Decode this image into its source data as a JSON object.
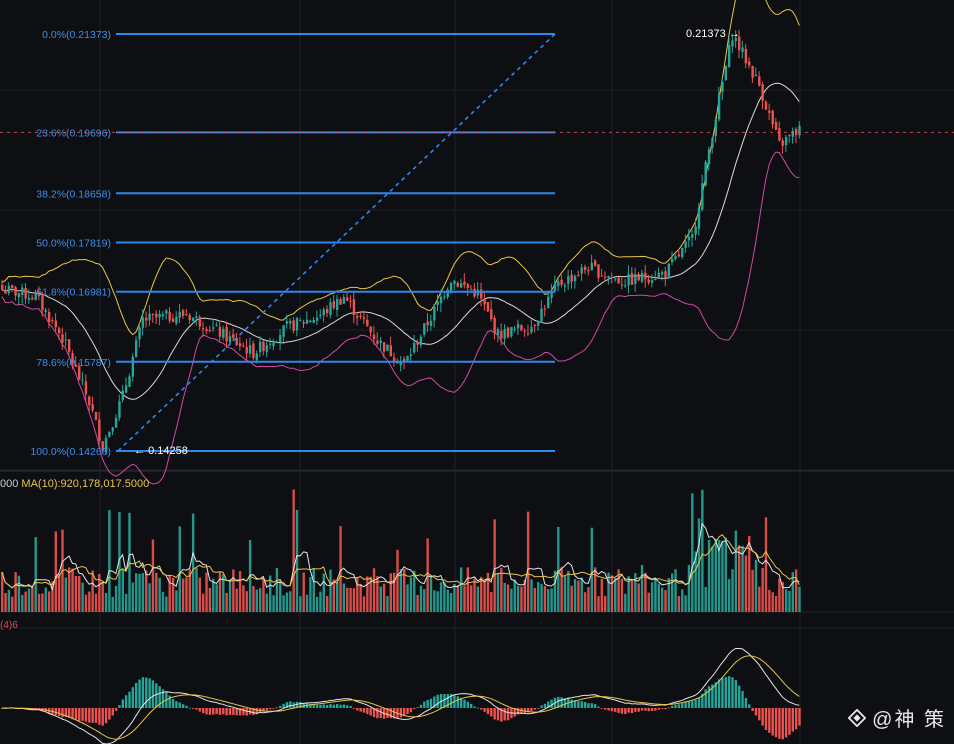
{
  "chart_data": {
    "type": "candlestick",
    "fibonacci": {
      "levels": [
        {
          "label": "0.0%(0.21373)",
          "price": 0.21373
        },
        {
          "label": "23.6%(0.19696)",
          "price": 0.19696
        },
        {
          "label": "38.2%(0.18658)",
          "price": 0.18658
        },
        {
          "label": "50.0%(0.17819)",
          "price": 0.17819
        },
        {
          "label": "61.8%(0.16981)",
          "price": 0.16981
        },
        {
          "label": "78.6%(0.15787)",
          "price": 0.15787
        },
        {
          "label": "100.0%(0.14266)",
          "price": 0.14266
        }
      ]
    },
    "high_label": "0.21373",
    "low_label": "0.14258",
    "price_range": [
      0.1405,
      0.2164
    ],
    "volume_legend": {
      "left": "000",
      "ma": "MA(10):920,178,017.5000"
    },
    "macd_legend": "(4)6"
  },
  "colors": {
    "up": "#26a69a",
    "down": "#ef5350",
    "fib": "#2f86ec",
    "boll_upper": "#e7c54a",
    "boll_mid": "#d9d9d9",
    "boll_lower": "#d14aa3",
    "grid": "#1e2128",
    "current_price": "#ef5350"
  },
  "watermark": {
    "text": "@神 策",
    "icon": "diamond-logo-icon"
  }
}
